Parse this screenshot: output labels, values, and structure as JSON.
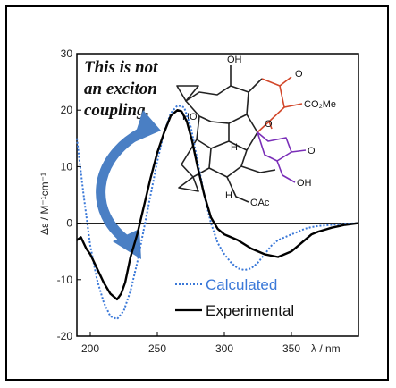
{
  "chart_data": {
    "type": "line",
    "xlim": [
      190,
      400
    ],
    "ylim": [
      -20,
      30
    ],
    "xticks": [
      200,
      250,
      300,
      350
    ],
    "yticks": [
      30,
      20,
      10,
      0,
      -10,
      -20
    ],
    "xlabel": "λ / nm",
    "ylabel": "Δε / M⁻¹cm⁻¹",
    "annotation": [
      "This is not",
      "an exciton",
      "coupling."
    ],
    "series": [
      {
        "name": "Calculated",
        "color": "#3a78d8",
        "style": "dotted",
        "x": [
          190,
          195,
          200,
          205,
          210,
          215,
          220,
          225,
          230,
          235,
          240,
          245,
          250,
          255,
          260,
          265,
          270,
          275,
          280,
          285,
          290,
          295,
          300,
          305,
          310,
          315,
          320,
          325,
          330,
          335,
          340,
          345,
          350,
          355,
          360,
          365,
          370,
          380,
          390,
          400
        ],
        "y": [
          15,
          5,
          -4,
          -10,
          -14,
          -16.5,
          -17,
          -15.5,
          -12,
          -7,
          -1,
          5,
          11,
          16,
          19.5,
          20.8,
          20.5,
          17,
          11,
          5,
          0,
          -3.5,
          -5.5,
          -7,
          -8,
          -8.3,
          -8,
          -7,
          -5.5,
          -4,
          -3,
          -2.5,
          -2,
          -1.5,
          -1,
          -0.7,
          -0.5,
          -0.3,
          -0.1,
          0
        ]
      },
      {
        "name": "Experimental",
        "color": "#000000",
        "style": "solid",
        "x": [
          190,
          193,
          197,
          200,
          205,
          210,
          215,
          220,
          223,
          226,
          230,
          235,
          240,
          245,
          250,
          255,
          260,
          265,
          268,
          272,
          276,
          280,
          285,
          290,
          295,
          300,
          305,
          310,
          320,
          330,
          340,
          345,
          350,
          355,
          360,
          365,
          370,
          380,
          390,
          400
        ],
        "y": [
          -3,
          -2.5,
          -4.5,
          -5.5,
          -8,
          -10.5,
          -12.5,
          -13.5,
          -12.5,
          -10.5,
          -6,
          -2,
          3,
          8,
          12.5,
          16,
          19,
          20,
          19.8,
          18,
          14.5,
          10,
          5,
          1,
          -1,
          -2,
          -2.5,
          -3,
          -4.5,
          -5.5,
          -6,
          -5.5,
          -5,
          -4,
          -3,
          -2,
          -1.5,
          -0.8,
          -0.3,
          0
        ]
      }
    ]
  }
}
